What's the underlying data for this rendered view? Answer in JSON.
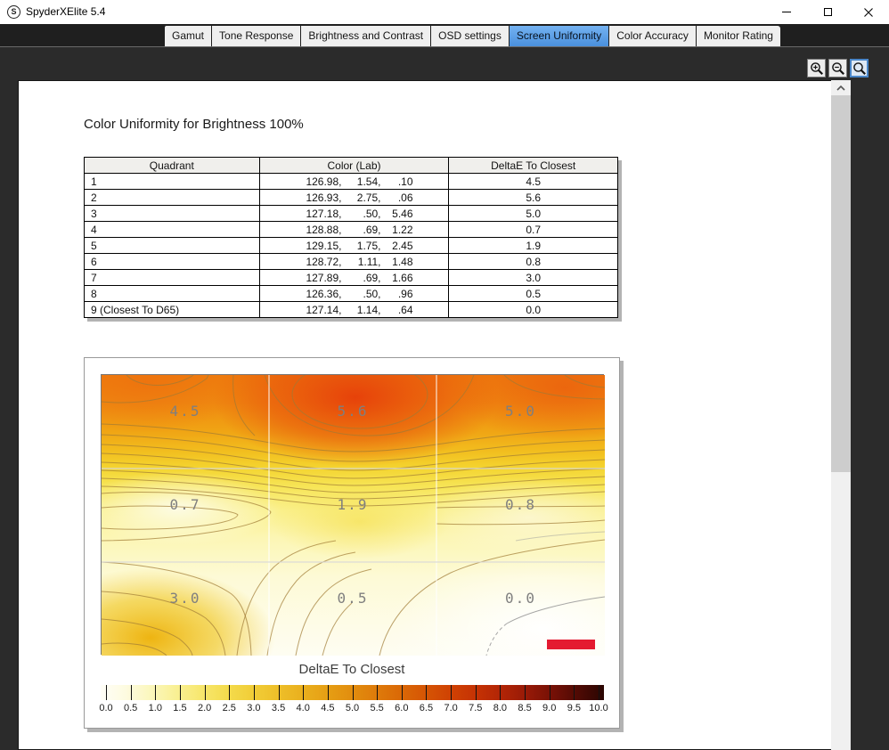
{
  "window": {
    "title": "SpyderXElite 5.4",
    "logo_letter": "S",
    "control_icons": [
      "minimize-icon",
      "maximize-icon",
      "close-icon"
    ]
  },
  "tabs": {
    "selected_bg_top": "#74b2f1",
    "selected_bg_bottom": "#4a90dd",
    "items": [
      {
        "label": "Gamut",
        "selected": false
      },
      {
        "label": "Tone Response",
        "selected": false
      },
      {
        "label": "Brightness and Contrast",
        "selected": false
      },
      {
        "label": "OSD settings",
        "selected": false
      },
      {
        "label": "Screen Uniformity",
        "selected": true
      },
      {
        "label": "Color Accuracy",
        "selected": false
      },
      {
        "label": "Monitor Rating",
        "selected": false
      }
    ]
  },
  "toolbar": {
    "buttons": [
      {
        "name": "zoom-in",
        "selected": false
      },
      {
        "name": "zoom-out",
        "selected": false
      },
      {
        "name": "zoom-tool",
        "selected": true
      }
    ]
  },
  "page": {
    "title": "Color Uniformity for Brightness 100%",
    "table": {
      "headers": [
        "Quadrant",
        "Color (Lab)",
        "DeltaE To Closest"
      ],
      "rows": [
        {
          "quadrant": "1",
          "lab": [
            "126.98,",
            "1.54,",
            ".10"
          ],
          "delta": "4.5"
        },
        {
          "quadrant": "2",
          "lab": [
            "126.93,",
            "2.75,",
            ".06"
          ],
          "delta": "5.6"
        },
        {
          "quadrant": "3",
          "lab": [
            "127.18,",
            ".50,",
            "5.46"
          ],
          "delta": "5.0"
        },
        {
          "quadrant": "4",
          "lab": [
            "128.88,",
            ".69,",
            "1.22"
          ],
          "delta": "0.7"
        },
        {
          "quadrant": "5",
          "lab": [
            "129.15,",
            "1.75,",
            "2.45"
          ],
          "delta": "1.9"
        },
        {
          "quadrant": "6",
          "lab": [
            "128.72,",
            "1.11,",
            "1.48"
          ],
          "delta": "0.8"
        },
        {
          "quadrant": "7",
          "lab": [
            "127.89,",
            ".69,",
            "1.66"
          ],
          "delta": "3.0"
        },
        {
          "quadrant": "8",
          "lab": [
            "126.36,",
            ".50,",
            ".96"
          ],
          "delta": "0.5"
        },
        {
          "quadrant": "9 (Closest To D65)",
          "lab": [
            "127.14,",
            "1.14,",
            ".64"
          ],
          "delta": "0.0"
        }
      ]
    },
    "heatmap": {
      "labels_grid": [
        [
          "4.5",
          "5.6",
          "5.0"
        ],
        [
          "0.7",
          "1.9",
          "0.8"
        ],
        [
          "3.0",
          "0.5",
          "0.0"
        ]
      ],
      "marker_color": "#e41a30",
      "legend": {
        "title": "DeltaE To Closest",
        "ticks": [
          "0.0",
          "0.5",
          "1.0",
          "1.5",
          "2.0",
          "2.5",
          "3.0",
          "3.5",
          "4.0",
          "4.5",
          "5.0",
          "5.5",
          "6.0",
          "6.5",
          "7.0",
          "7.5",
          "8.0",
          "8.5",
          "9.0",
          "9.5",
          "10.0"
        ],
        "gradient": [
          "#fffef8",
          "#fdfbe0",
          "#fbf7bc",
          "#f9f094",
          "#f7e76e",
          "#f4dc4e",
          "#f1ce38",
          "#eec02a",
          "#eab01e",
          "#e69f14",
          "#e28d0e",
          "#de7a0a",
          "#da6706",
          "#d55304",
          "#cf4003",
          "#c43104",
          "#b02406",
          "#951907",
          "#741006",
          "#4e0a04",
          "#2a0602"
        ]
      }
    }
  },
  "chart_data": {
    "type": "heatmap",
    "title": "DeltaE To Closest",
    "layout_note": "3x3 screen quadrants, row-major from top-left, matching table quadrants 1-9",
    "values": [
      [
        4.5,
        5.6,
        5.0
      ],
      [
        0.7,
        1.9,
        0.8
      ],
      [
        3.0,
        0.5,
        0.0
      ]
    ],
    "scale_min": 0.0,
    "scale_max": 10.0,
    "scale_step": 0.5
  }
}
